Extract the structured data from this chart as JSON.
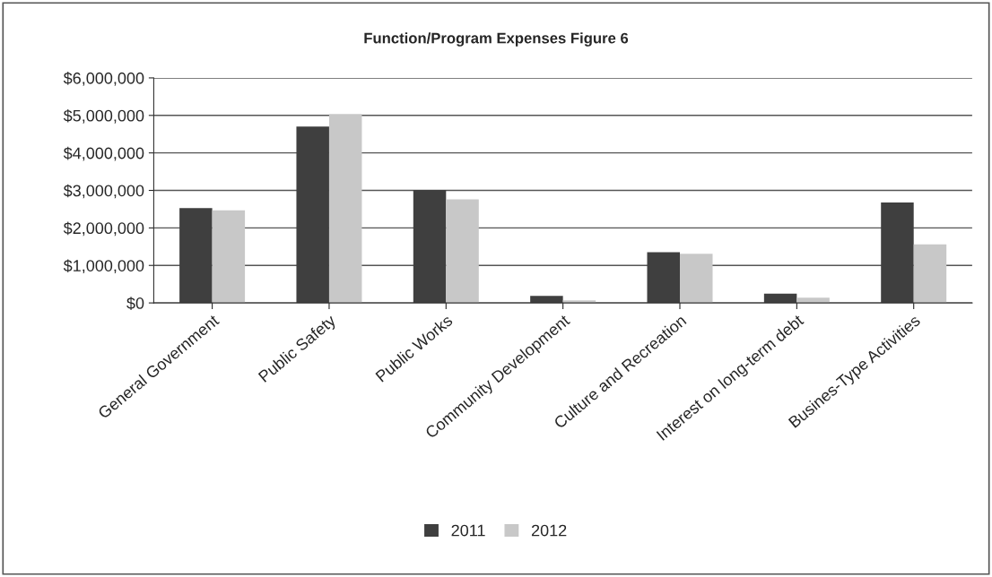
{
  "chart_data": {
    "type": "bar",
    "title": "Function/Program Expenses Figure 6",
    "categories": [
      "General Government",
      "Public Safety",
      "Public Works",
      "Community Development",
      "Culture and Recreation",
      "Interest on long-term debt",
      "Busines-Type Activities"
    ],
    "series": [
      {
        "name": "2011",
        "color": "#3f3f3f",
        "values": [
          2530000,
          4700000,
          3010000,
          190000,
          1350000,
          250000,
          2680000
        ]
      },
      {
        "name": "2012",
        "color": "#c8c8c8",
        "values": [
          2470000,
          5040000,
          2760000,
          70000,
          1310000,
          140000,
          1560000
        ]
      }
    ],
    "ylim": [
      0,
      6000000
    ],
    "yticks": [
      {
        "value": 0,
        "label": "$0"
      },
      {
        "value": 1000000,
        "label": "$1,000,000"
      },
      {
        "value": 2000000,
        "label": "$2,000,000"
      },
      {
        "value": 3000000,
        "label": "$3,000,000"
      },
      {
        "value": 4000000,
        "label": "$4,000,000"
      },
      {
        "value": 5000000,
        "label": "$5,000,000"
      },
      {
        "value": 6000000,
        "label": "$6,000,000"
      }
    ],
    "grid": "y",
    "legend": "bottom"
  }
}
